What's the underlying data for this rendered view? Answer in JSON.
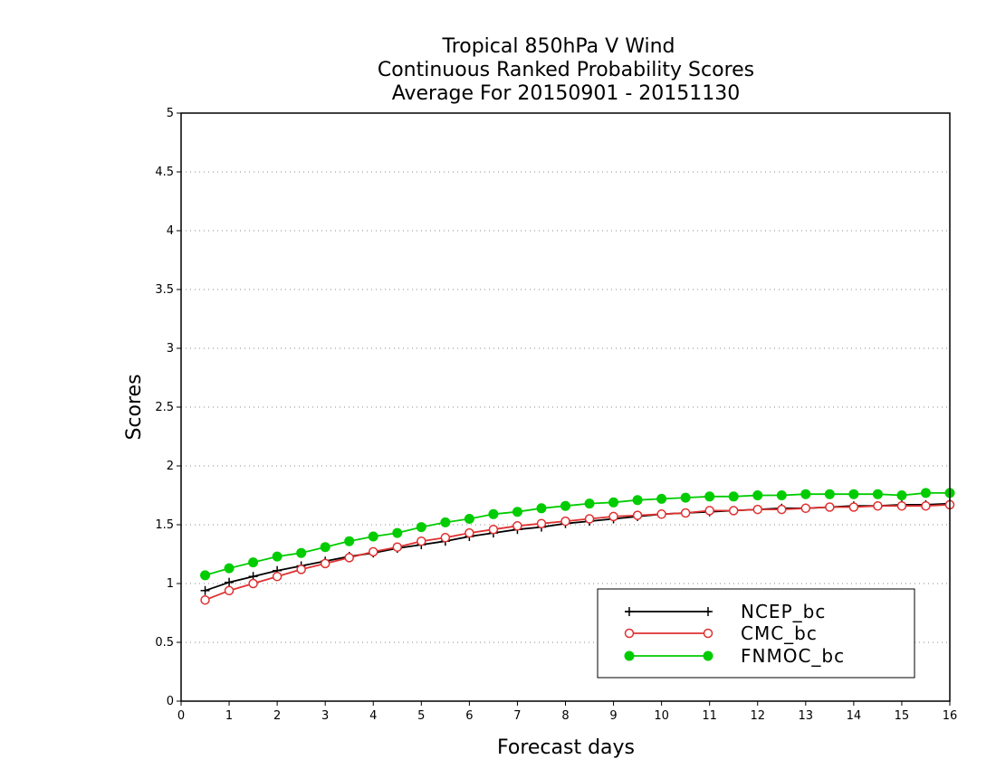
{
  "chart_data": {
    "type": "line",
    "title_lines": [
      "Tropical 850hPa V Wind",
      "Continuous Ranked Probability Scores",
      "Average For 20150901 - 20151130"
    ],
    "xlabel": "Forecast days",
    "ylabel": "Scores",
    "xlim": [
      0,
      16
    ],
    "ylim": [
      0,
      5
    ],
    "xticks": [
      "0",
      "1",
      "2",
      "3",
      "4",
      "5",
      "6",
      "7",
      "8",
      "9",
      "10",
      "11",
      "12",
      "13",
      "14",
      "15",
      "16"
    ],
    "yticks": [
      "0",
      "0.5",
      "1",
      "1.5",
      "2",
      "2.5",
      "3",
      "3.5",
      "4",
      "4.5",
      "5"
    ],
    "grid": "horizontal-dotted",
    "legend_position": "bottom-right",
    "x": [
      0.5,
      1,
      1.5,
      2,
      2.5,
      3,
      3.5,
      4,
      4.5,
      5,
      5.5,
      6,
      6.5,
      7,
      7.5,
      8,
      8.5,
      9,
      9.5,
      10,
      10.5,
      11,
      11.5,
      12,
      12.5,
      13,
      13.5,
      14,
      14.5,
      15,
      15.5,
      16
    ],
    "series": [
      {
        "name": "NCEP_bc",
        "color": "#000000",
        "marker": "plus",
        "values": [
          0.94,
          1.01,
          1.06,
          1.11,
          1.15,
          1.19,
          1.23,
          1.26,
          1.3,
          1.33,
          1.36,
          1.4,
          1.43,
          1.46,
          1.48,
          1.51,
          1.53,
          1.55,
          1.57,
          1.59,
          1.6,
          1.61,
          1.62,
          1.63,
          1.64,
          1.64,
          1.65,
          1.66,
          1.66,
          1.67,
          1.67,
          1.68
        ]
      },
      {
        "name": "CMC_bc",
        "color": "#e03030",
        "marker": "open-circle",
        "values": [
          0.86,
          0.94,
          1.0,
          1.06,
          1.12,
          1.17,
          1.22,
          1.27,
          1.31,
          1.36,
          1.39,
          1.43,
          1.46,
          1.49,
          1.51,
          1.53,
          1.55,
          1.57,
          1.58,
          1.59,
          1.6,
          1.62,
          1.62,
          1.63,
          1.63,
          1.64,
          1.65,
          1.65,
          1.66,
          1.66,
          1.66,
          1.67
        ]
      },
      {
        "name": "FNMOC_bc",
        "color": "#00cc00",
        "marker": "filled-circle",
        "values": [
          1.07,
          1.13,
          1.18,
          1.23,
          1.26,
          1.31,
          1.36,
          1.4,
          1.43,
          1.48,
          1.52,
          1.55,
          1.59,
          1.61,
          1.64,
          1.66,
          1.68,
          1.69,
          1.71,
          1.72,
          1.73,
          1.74,
          1.74,
          1.75,
          1.75,
          1.76,
          1.76,
          1.76,
          1.76,
          1.75,
          1.77,
          1.77
        ]
      }
    ]
  }
}
